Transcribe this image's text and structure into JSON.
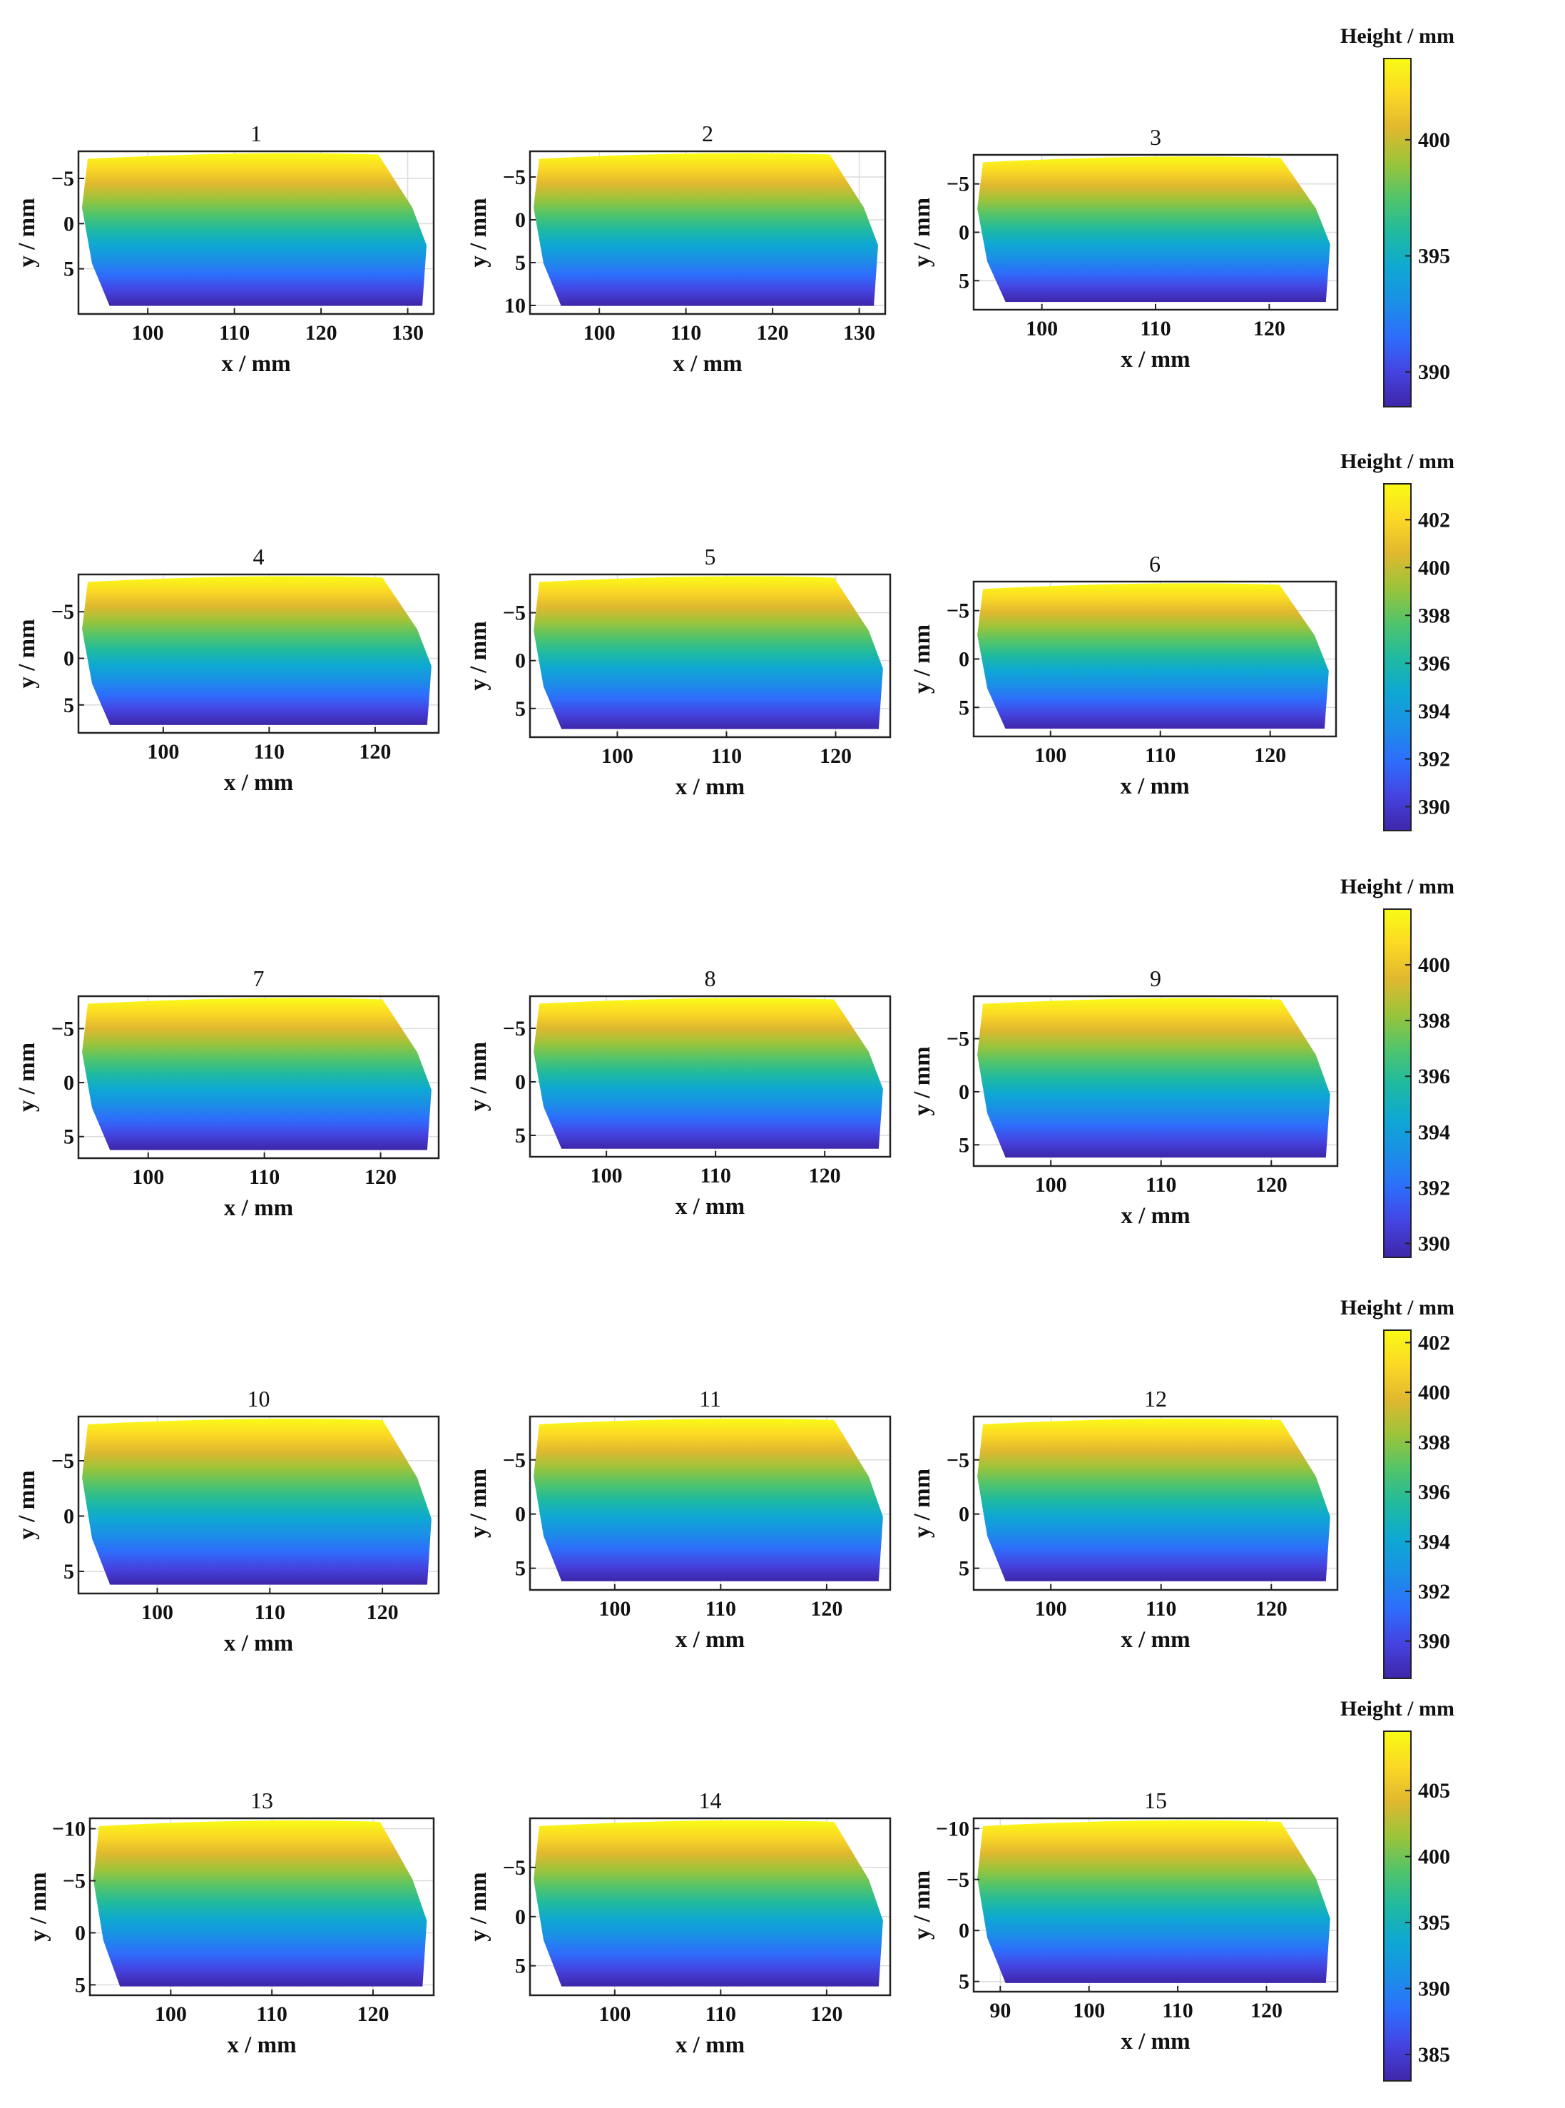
{
  "chart_data": {
    "type": "heatmap",
    "description_unit": "Height / mm",
    "colormap": [
      "#3e26a8",
      "#4543e0",
      "#2e6dfc",
      "#1b8fe6",
      "#0ea8d3",
      "#1fbaa0",
      "#52c46a",
      "#9cc43a",
      "#e0b82f",
      "#fbd925",
      "#f9fb15"
    ],
    "rows": [
      {
        "colorbar": {
          "title": "Height / mm",
          "range": [
            388.5,
            403.5
          ],
          "ticks": [
            390,
            395,
            400
          ]
        },
        "panels": [
          {
            "title": "1",
            "x_range": [
              92,
              133
            ],
            "y_range": [
              -8,
              10
            ],
            "x_ticks": [
              100,
              110,
              120,
              130
            ],
            "y_ticks": [
              -5,
              0,
              5
            ],
            "xlabel": "x / mm",
            "ylabel": "y / mm"
          },
          {
            "title": "2",
            "x_range": [
              92,
              133
            ],
            "y_range": [
              -8,
              11
            ],
            "x_ticks": [
              100,
              110,
              120,
              130
            ],
            "y_ticks": [
              -5,
              0,
              5,
              10
            ],
            "xlabel": "x / mm",
            "ylabel": "y / mm"
          },
          {
            "title": "3",
            "x_range": [
              94,
              126
            ],
            "y_range": [
              -8,
              8
            ],
            "x_ticks": [
              100,
              110,
              120
            ],
            "y_ticks": [
              -5,
              0,
              5
            ],
            "xlabel": "x / mm",
            "ylabel": "y / mm"
          }
        ]
      },
      {
        "colorbar": {
          "title": "Height / mm",
          "range": [
            389,
            403.5
          ],
          "ticks": [
            390,
            392,
            394,
            396,
            398,
            400,
            402
          ]
        },
        "panels": [
          {
            "title": "4",
            "x_range": [
              92,
              126
            ],
            "y_range": [
              -9,
              8
            ],
            "x_ticks": [
              100,
              110,
              120
            ],
            "y_ticks": [
              -5,
              0,
              5
            ],
            "xlabel": "x / mm",
            "ylabel": "y / mm"
          },
          {
            "title": "5",
            "x_range": [
              92,
              125
            ],
            "y_range": [
              -9,
              8
            ],
            "x_ticks": [
              100,
              110,
              120
            ],
            "y_ticks": [
              -5,
              0,
              5
            ],
            "xlabel": "x / mm",
            "ylabel": "y / mm"
          },
          {
            "title": "6",
            "x_range": [
              93,
              126
            ],
            "y_range": [
              -8,
              8
            ],
            "x_ticks": [
              100,
              110,
              120
            ],
            "y_ticks": [
              -5,
              0,
              5
            ],
            "xlabel": "x / mm",
            "ylabel": "y / mm"
          }
        ]
      },
      {
        "colorbar": {
          "title": "Height / mm",
          "range": [
            389.5,
            402
          ],
          "ticks": [
            390,
            392,
            394,
            396,
            398,
            400
          ]
        },
        "panels": [
          {
            "title": "7",
            "x_range": [
              94,
              125
            ],
            "y_range": [
              -8,
              7
            ],
            "x_ticks": [
              100,
              110,
              120
            ],
            "y_ticks": [
              -5,
              0,
              5
            ],
            "xlabel": "x / mm",
            "ylabel": "y / mm"
          },
          {
            "title": "8",
            "x_range": [
              93,
              126
            ],
            "y_range": [
              -8,
              7
            ],
            "x_ticks": [
              100,
              110,
              120
            ],
            "y_ticks": [
              -5,
              0,
              5
            ],
            "xlabel": "x / mm",
            "ylabel": "y / mm"
          },
          {
            "title": "9",
            "x_range": [
              93,
              126
            ],
            "y_range": [
              -9,
              7
            ],
            "x_ticks": [
              100,
              110,
              120
            ],
            "y_ticks": [
              -5,
              0,
              5
            ],
            "xlabel": "x / mm",
            "ylabel": "y / mm"
          }
        ]
      },
      {
        "colorbar": {
          "title": "Height / mm",
          "range": [
            388.5,
            402.5
          ],
          "ticks": [
            390,
            392,
            394,
            396,
            398,
            400,
            402
          ]
        },
        "panels": [
          {
            "title": "10",
            "x_range": [
              93,
              125
            ],
            "y_range": [
              -9,
              7
            ],
            "x_ticks": [
              100,
              110,
              120
            ],
            "y_ticks": [
              -5,
              0,
              5
            ],
            "xlabel": "x / mm",
            "ylabel": "y / mm"
          },
          {
            "title": "11",
            "x_range": [
              92,
              126
            ],
            "y_range": [
              -9,
              7
            ],
            "x_ticks": [
              100,
              110,
              120
            ],
            "y_ticks": [
              -5,
              0,
              5
            ],
            "xlabel": "x / mm",
            "ylabel": "y / mm"
          },
          {
            "title": "12",
            "x_range": [
              93,
              126
            ],
            "y_range": [
              -9,
              7
            ],
            "x_ticks": [
              100,
              110,
              120
            ],
            "y_ticks": [
              -5,
              0,
              5
            ],
            "xlabel": "x / mm",
            "ylabel": "y / mm"
          }
        ]
      },
      {
        "colorbar": {
          "title": "Height / mm",
          "range": [
            383,
            409.5
          ],
          "ticks": [
            385,
            390,
            395,
            400,
            405
          ]
        },
        "panels": [
          {
            "title": "13",
            "x_range": [
              92,
              126
            ],
            "y_range": [
              -11,
              6
            ],
            "x_ticks": [
              100,
              110,
              120
            ],
            "y_ticks": [
              -10,
              -5,
              0,
              5
            ],
            "xlabel": "x / mm",
            "ylabel": "y / mm"
          },
          {
            "title": "14",
            "x_range": [
              92,
              126
            ],
            "y_range": [
              -10,
              8
            ],
            "x_ticks": [
              100,
              110,
              120
            ],
            "y_ticks": [
              -5,
              0,
              5
            ],
            "xlabel": "x / mm",
            "ylabel": "y / mm"
          },
          {
            "title": "15",
            "x_range": [
              87,
              128
            ],
            "y_range": [
              -11,
              6
            ],
            "x_ticks": [
              90,
              100,
              110,
              120
            ],
            "y_ticks": [
              -10,
              -5,
              0,
              5
            ],
            "xlabel": "x / mm",
            "ylabel": "y / mm"
          }
        ]
      }
    ]
  }
}
